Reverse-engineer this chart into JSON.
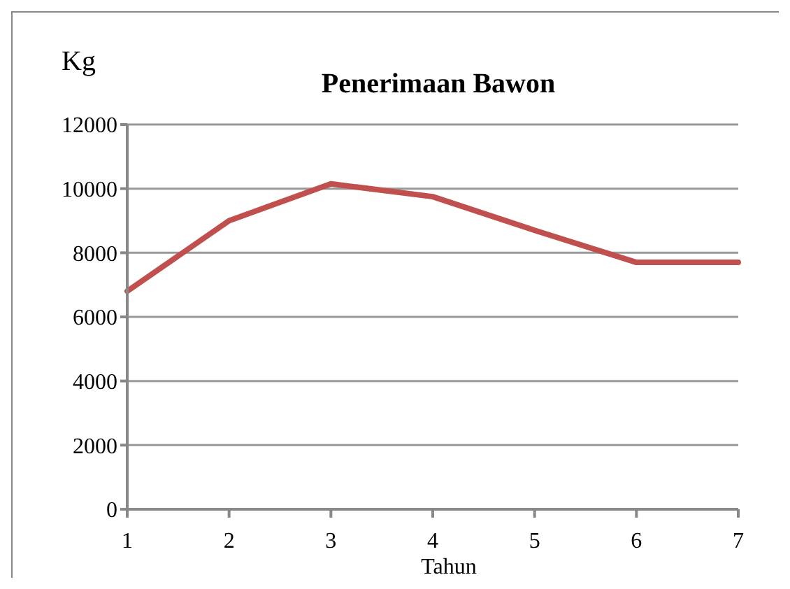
{
  "chart_data": {
    "type": "line",
    "title": "Penerimaan Bawon",
    "xlabel": "Tahun",
    "ylabel": "Kg",
    "categories": [
      "1",
      "2",
      "3",
      "4",
      "5",
      "6",
      "7"
    ],
    "series": [
      {
        "color": "#c0504d",
        "values": [
          6800,
          9000,
          10150,
          9750,
          8700,
          7700,
          7700
        ]
      }
    ],
    "ylim": [
      0,
      12000
    ],
    "yticks": [
      0,
      2000,
      4000,
      6000,
      8000,
      10000,
      12000
    ],
    "grid": "y",
    "legend": false,
    "marker": "none",
    "line_style": "solid"
  }
}
